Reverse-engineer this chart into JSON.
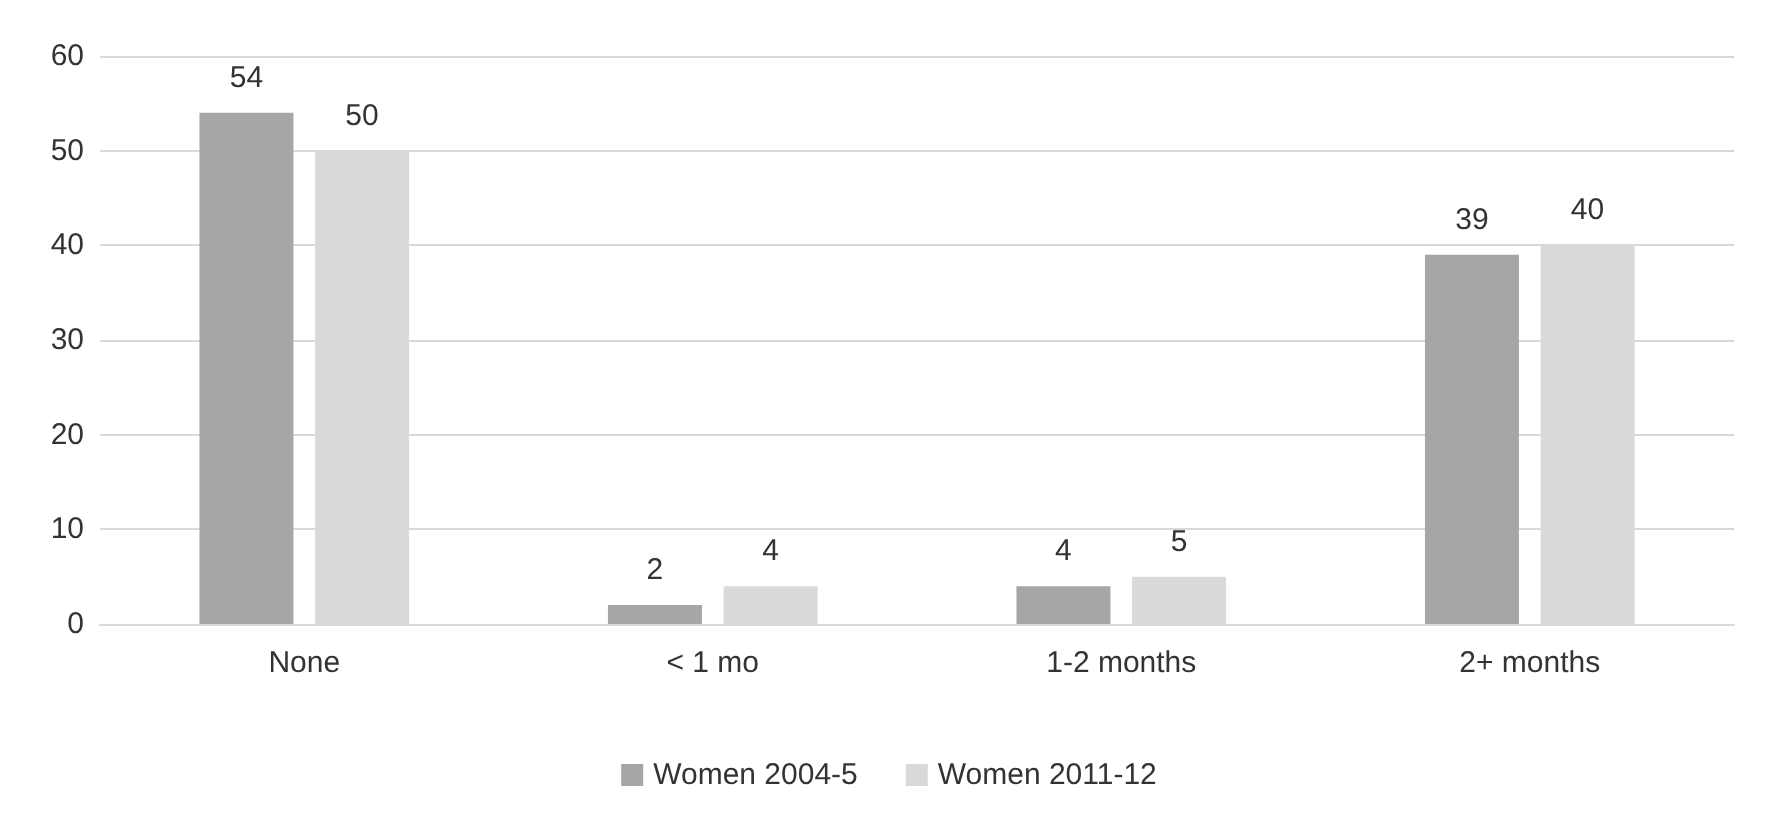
{
  "chart_data": {
    "type": "bar",
    "categories": [
      "None",
      "< 1 mo",
      "1-2 months",
      "2+ months"
    ],
    "series": [
      {
        "name": "Women 2004-5",
        "color": "#a6a6a6",
        "values": [
          54,
          2,
          4,
          39
        ]
      },
      {
        "name": "Women 2011-12",
        "color": "#d9d9d9",
        "values": [
          50,
          4,
          5,
          40
        ]
      }
    ],
    "ylim": [
      0,
      60
    ],
    "yticks": [
      0,
      10,
      20,
      30,
      40,
      50,
      60
    ],
    "grid": "y",
    "legend": "bottom",
    "data_labels": true
  }
}
